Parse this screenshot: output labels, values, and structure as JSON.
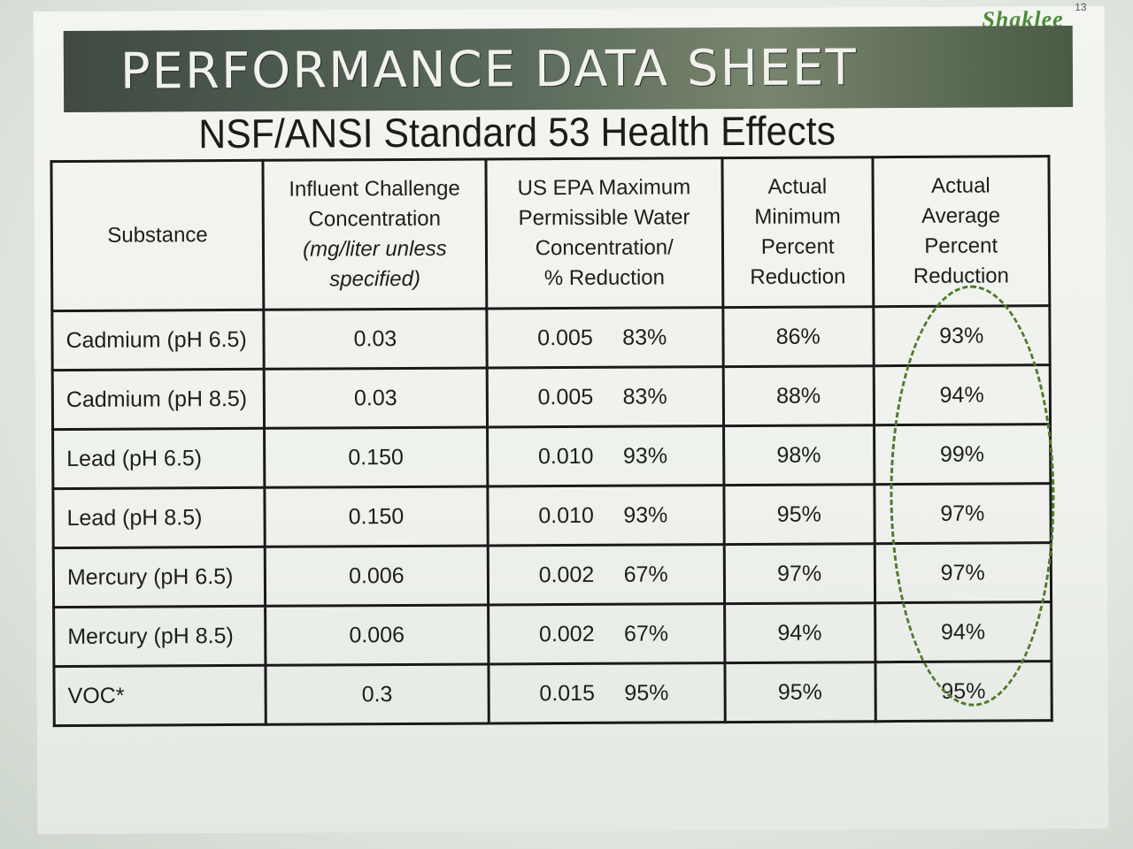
{
  "brand": {
    "logo": "Shaklee",
    "superscript": "13"
  },
  "header": {
    "banner_title": "PERFORMANCE DATA SHEET",
    "subtitle": "NSF/ANSI Standard 53 Health Effects"
  },
  "table": {
    "headers": {
      "substance": "Substance",
      "influent_line1": "Influent Challenge",
      "influent_line2": "Concentration",
      "influent_line3": "(mg/liter unless",
      "influent_line4": "specified)",
      "epa_line1": "US EPA Maximum",
      "epa_line2": "Permissible Water",
      "epa_line3": "Concentration/",
      "epa_line4": "% Reduction",
      "min_line1": "Actual",
      "min_line2": "Minimum",
      "min_line3": "Percent",
      "min_line4": "Reduction",
      "avg_line1": "Actual",
      "avg_line2": "Average",
      "avg_line3": "Percent",
      "avg_line4": "Reduction"
    },
    "rows": [
      {
        "substance": "Cadmium (pH 6.5)",
        "influent": "0.03",
        "epa_value": "0.005",
        "epa_pct": "83%",
        "min": "86%",
        "avg": "93%"
      },
      {
        "substance": "Cadmium (pH 8.5)",
        "influent": "0.03",
        "epa_value": "0.005",
        "epa_pct": "83%",
        "min": "88%",
        "avg": "94%"
      },
      {
        "substance": "Lead (pH 6.5)",
        "influent": "0.150",
        "epa_value": "0.010",
        "epa_pct": "93%",
        "min": "98%",
        "avg": "99%"
      },
      {
        "substance": "Lead (pH 8.5)",
        "influent": "0.150",
        "epa_value": "0.010",
        "epa_pct": "93%",
        "min": "95%",
        "avg": "97%"
      },
      {
        "substance": "Mercury (pH 6.5)",
        "influent": "0.006",
        "epa_value": "0.002",
        "epa_pct": "67%",
        "min": "97%",
        "avg": "97%"
      },
      {
        "substance": "Mercury (pH 8.5)",
        "influent": "0.006",
        "epa_value": "0.002",
        "epa_pct": "67%",
        "min": "94%",
        "avg": "94%"
      },
      {
        "substance": "VOC*",
        "influent": "0.3",
        "epa_value": "0.015",
        "epa_pct": "95%",
        "min": "95%",
        "avg": "95%"
      }
    ]
  },
  "annotation": {
    "oval_color": "#4f7a2c",
    "style": "dashed-oval"
  }
}
